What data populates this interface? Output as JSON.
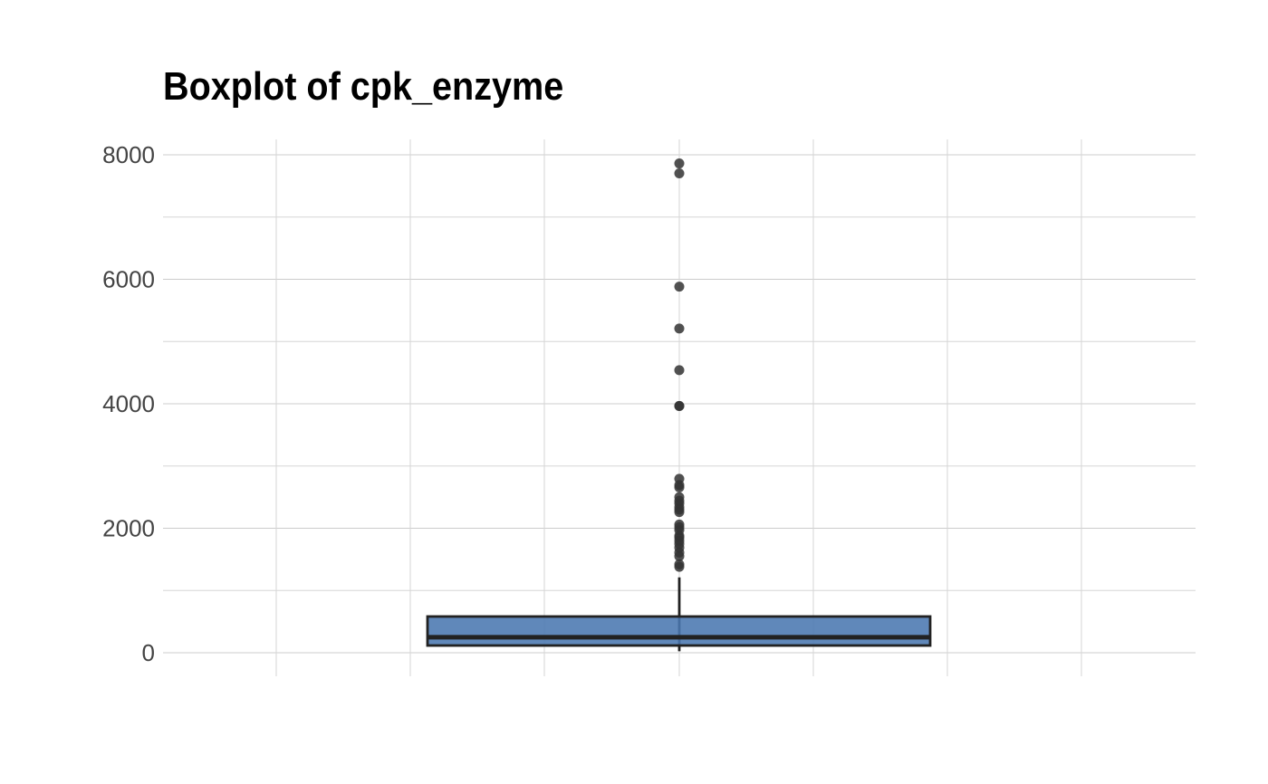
{
  "chart_data": {
    "type": "boxplot",
    "title": "Boxplot of cpk_enzyme",
    "xlabel": "",
    "ylabel": "",
    "ylim": [
      -380,
      8250
    ],
    "yticks": [
      0,
      2000,
      4000,
      6000,
      8000
    ],
    "ytick_labels": [
      "0",
      "2000",
      "4000",
      "6000",
      "8000"
    ],
    "grid": true,
    "box": {
      "min": 23,
      "q1": 116,
      "median": 250,
      "q3": 582,
      "whisker_low": 23,
      "whisker_high": 1211,
      "fill_color": "#4a78b0",
      "outline_color": "#222222"
    },
    "outliers": [
      1380,
      1420,
      1550,
      1610,
      1688,
      1750,
      1800,
      1850,
      1880,
      1970,
      2017,
      2060,
      2260,
      2300,
      2340,
      2400,
      2442,
      2500,
      2656,
      2695,
      2794,
      3964,
      3966,
      4540,
      5209,
      5882,
      7702,
      7861
    ]
  }
}
